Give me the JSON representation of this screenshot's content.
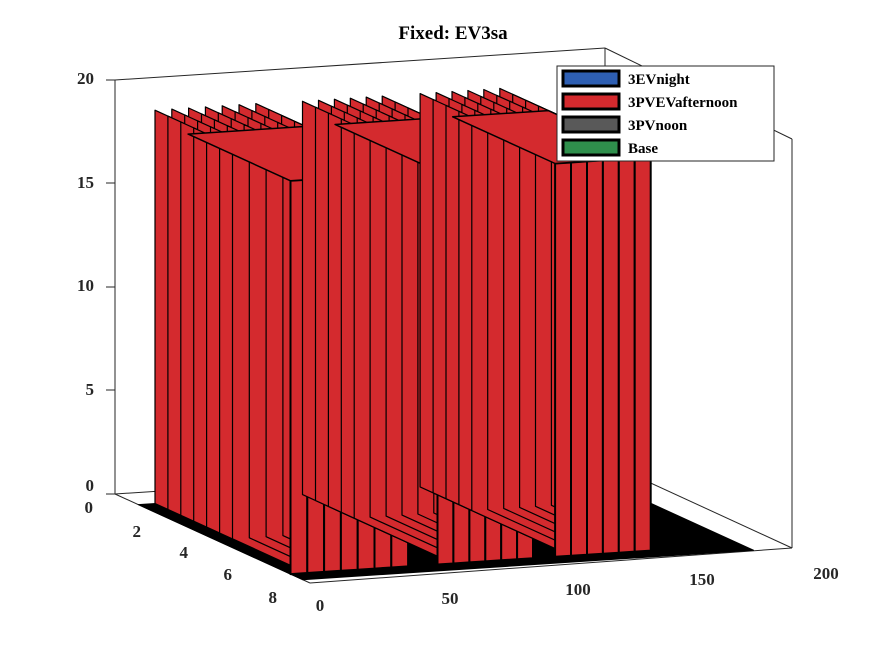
{
  "chart_data": {
    "type": "bar3d",
    "title": "Fixed: EV3sa",
    "xlabel": "",
    "ylabel": "",
    "zlabel": "",
    "x_ticks": [
      "0",
      "50",
      "100",
      "150",
      "200"
    ],
    "y_ticks": [
      "0",
      "2",
      "4",
      "6",
      "8"
    ],
    "z_ticks": [
      "0",
      "5",
      "10",
      "15",
      "20"
    ],
    "xlim": [
      0,
      200
    ],
    "ylim": [
      0,
      8
    ],
    "zlim": [
      0,
      20
    ],
    "legend_position": "top-right",
    "series": [
      {
        "name": "3EVnight",
        "color": "#2e5fb3",
        "values": []
      },
      {
        "name": "3PVEVafternoon",
        "color": "#d42a2e",
        "values": [
          {
            "y": 4,
            "x_from": 0,
            "x_to": 48,
            "value": 19
          },
          {
            "y": 4,
            "x_from": 60,
            "x_to": 99,
            "value": 19
          },
          {
            "y": 4,
            "x_from": 108,
            "x_to": 147,
            "value": 19
          }
        ]
      },
      {
        "name": "3PVnoon",
        "color": "#595959",
        "values": []
      },
      {
        "name": "Base",
        "color": "#2f8f4c",
        "values": []
      }
    ],
    "grid": false
  }
}
